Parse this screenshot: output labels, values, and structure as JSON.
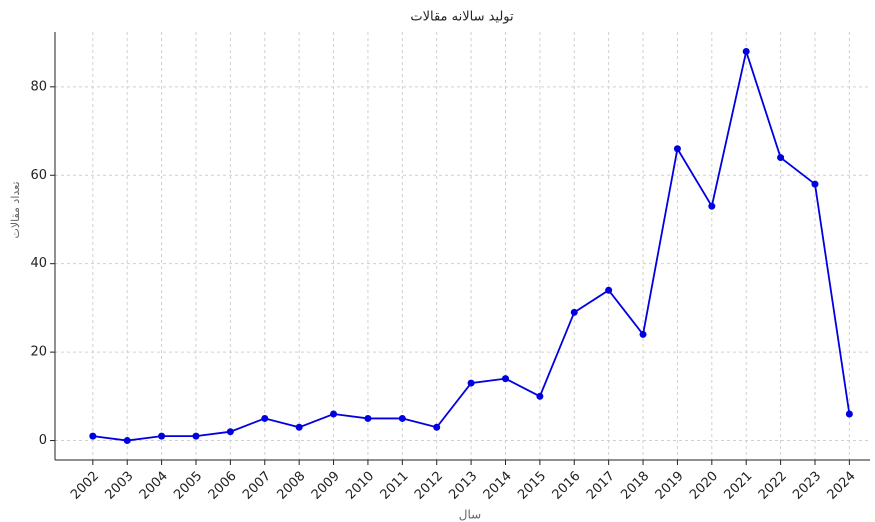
{
  "chart_data": {
    "type": "line",
    "title": "تولید سالانه مقالات",
    "x_label": "سال",
    "y_label": "تعداد مقالات",
    "x": [
      2002,
      2003,
      2004,
      2005,
      2006,
      2007,
      2008,
      2009,
      2010,
      2011,
      2012,
      2013,
      2014,
      2015,
      2016,
      2017,
      2018,
      2019,
      2020,
      2021,
      2022,
      2023,
      2024
    ],
    "series": [
      {
        "color": "#0000e0",
        "values": [
          1,
          0,
          1,
          1,
          2,
          5,
          3,
          6,
          5,
          5,
          3,
          13,
          14,
          10,
          29,
          34,
          24,
          66,
          53,
          88,
          64,
          58,
          6
        ]
      }
    ],
    "xlim": [
      2000.9,
      2024.6
    ],
    "xticks": [
      2002,
      2003,
      2004,
      2005,
      2006,
      2007,
      2008,
      2009,
      2010,
      2011,
      2012,
      2013,
      2014,
      2015,
      2016,
      2017,
      2018,
      2019,
      2020,
      2021,
      2022,
      2023,
      2024
    ],
    "ylim": [
      -4.4,
      92.4
    ],
    "yticks": [
      0,
      20,
      40,
      60,
      80
    ],
    "grid": true
  }
}
